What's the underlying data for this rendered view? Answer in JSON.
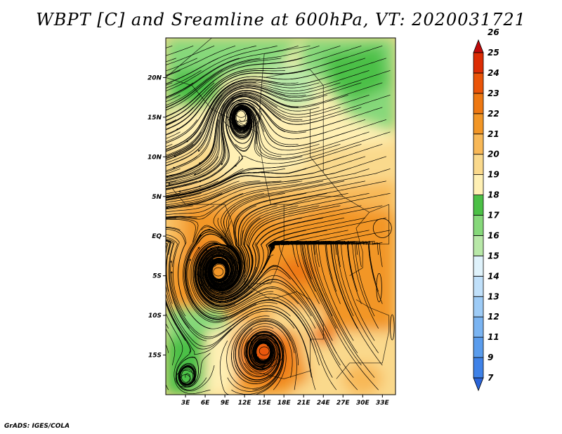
{
  "title": "WBPT [C] and Sreamline at 600hPa, VT: 2020031721",
  "credit": "GrADS: IGES/COLA",
  "map": {
    "lon_range": [
      0,
      35
    ],
    "lat_range": [
      -20,
      25
    ],
    "lat_ticks": [
      {
        "value": 20,
        "label": "20N"
      },
      {
        "value": 15,
        "label": "15N"
      },
      {
        "value": 10,
        "label": "10N"
      },
      {
        "value": 5,
        "label": "5N"
      },
      {
        "value": 0,
        "label": "EQ"
      },
      {
        "value": -5,
        "label": "5S"
      },
      {
        "value": -10,
        "label": "10S"
      },
      {
        "value": -15,
        "label": "15S"
      }
    ],
    "lon_ticks": [
      {
        "value": 3,
        "label": "3E"
      },
      {
        "value": 6,
        "label": "6E"
      },
      {
        "value": 9,
        "label": "9E"
      },
      {
        "value": 12,
        "label": "12E"
      },
      {
        "value": 15,
        "label": "15E"
      },
      {
        "value": 18,
        "label": "18E"
      },
      {
        "value": 21,
        "label": "21E"
      },
      {
        "value": 24,
        "label": "24E"
      },
      {
        "value": 27,
        "label": "27E"
      },
      {
        "value": 30,
        "label": "30E"
      },
      {
        "value": 33,
        "label": "33E"
      }
    ],
    "vortices": [
      {
        "name": "north-cyclone",
        "lon": 11.5,
        "lat": 15.5
      },
      {
        "name": "southwest-cyclone",
        "lon": 8,
        "lat": -4.5
      },
      {
        "name": "south-anticyclone",
        "lon": 15,
        "lat": -14.5
      },
      {
        "name": "southwest-corner-vortex",
        "lon": 3,
        "lat": -18
      }
    ]
  },
  "colorbar": {
    "levels": [
      "7",
      "9",
      "11",
      "12",
      "13",
      "14",
      "15",
      "16",
      "17",
      "18",
      "19",
      "20",
      "21",
      "22",
      "23",
      "24",
      "25",
      "26"
    ],
    "colors": [
      "#2a64d8",
      "#3f82e8",
      "#5a9ced",
      "#7ab4f2",
      "#9dcbf6",
      "#c0e0fa",
      "#dff2fb",
      "#b8e8a8",
      "#86d87a",
      "#4cc046",
      "#fff0b4",
      "#fad98c",
      "#f8b857",
      "#f29626",
      "#ee7812",
      "#ea5408",
      "#dc2c04",
      "#bf0a0a"
    ]
  },
  "field_colors": {
    "green_dark": "#4cc046",
    "green_mid": "#86d87a",
    "green_light": "#b8e8a8",
    "yellow": "#fff0b4",
    "light_orange": "#fad98c",
    "orange": "#f8b857",
    "deep_orange": "#f29626",
    "red_orange": "#ee7812",
    "red": "#ea5408"
  }
}
